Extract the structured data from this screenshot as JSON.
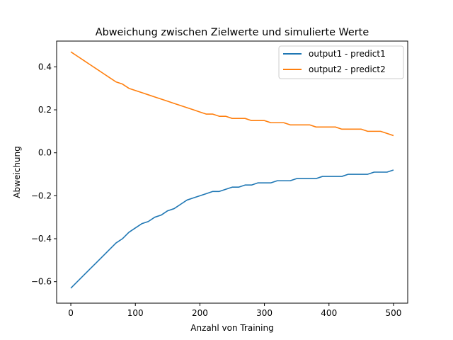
{
  "chart_data": {
    "type": "line",
    "title": "Abweichung zwischen Zielwerte und simulierte Werte",
    "xlabel": "Anzahl von Training",
    "ylabel": "Abweichung",
    "xlim": [
      -22,
      522
    ],
    "ylim": [
      -0.7,
      0.52
    ],
    "xticks": [
      0,
      100,
      200,
      300,
      400,
      500
    ],
    "xtick_labels": [
      "0",
      "100",
      "200",
      "300",
      "400",
      "500"
    ],
    "yticks": [
      -0.6,
      -0.4,
      -0.2,
      0.0,
      0.2,
      0.4
    ],
    "ytick_labels": [
      "−0.6",
      "−0.4",
      "−0.2",
      "0.0",
      "0.2",
      "0.4"
    ],
    "grid": false,
    "legend_position": "top-right",
    "series": [
      {
        "name": "output1 - predict1",
        "color": "#1f77b4",
        "x": [
          0,
          10,
          20,
          30,
          40,
          50,
          60,
          70,
          80,
          90,
          100,
          110,
          120,
          130,
          140,
          150,
          160,
          170,
          180,
          190,
          200,
          210,
          220,
          230,
          240,
          250,
          260,
          270,
          280,
          290,
          300,
          310,
          320,
          330,
          340,
          350,
          360,
          370,
          380,
          390,
          400,
          410,
          420,
          430,
          440,
          450,
          460,
          470,
          480,
          490,
          500
        ],
        "y": [
          -0.63,
          -0.6,
          -0.57,
          -0.54,
          -0.51,
          -0.48,
          -0.45,
          -0.42,
          -0.4,
          -0.37,
          -0.35,
          -0.33,
          -0.32,
          -0.3,
          -0.29,
          -0.27,
          -0.26,
          -0.24,
          -0.22,
          -0.21,
          -0.2,
          -0.19,
          -0.18,
          -0.18,
          -0.17,
          -0.16,
          -0.16,
          -0.15,
          -0.15,
          -0.14,
          -0.14,
          -0.14,
          -0.13,
          -0.13,
          -0.13,
          -0.12,
          -0.12,
          -0.12,
          -0.12,
          -0.11,
          -0.11,
          -0.11,
          -0.11,
          -0.1,
          -0.1,
          -0.1,
          -0.1,
          -0.09,
          -0.09,
          -0.09,
          -0.08
        ]
      },
      {
        "name": "output2 - predict2",
        "color": "#ff7f0e",
        "x": [
          0,
          10,
          20,
          30,
          40,
          50,
          60,
          70,
          80,
          90,
          100,
          110,
          120,
          130,
          140,
          150,
          160,
          170,
          180,
          190,
          200,
          210,
          220,
          230,
          240,
          250,
          260,
          270,
          280,
          290,
          300,
          310,
          320,
          330,
          340,
          350,
          360,
          370,
          380,
          390,
          400,
          410,
          420,
          430,
          440,
          450,
          460,
          470,
          480,
          490,
          500
        ],
        "y": [
          0.47,
          0.45,
          0.43,
          0.41,
          0.39,
          0.37,
          0.35,
          0.33,
          0.32,
          0.3,
          0.29,
          0.28,
          0.27,
          0.26,
          0.25,
          0.24,
          0.23,
          0.22,
          0.21,
          0.2,
          0.19,
          0.18,
          0.18,
          0.17,
          0.17,
          0.16,
          0.16,
          0.16,
          0.15,
          0.15,
          0.15,
          0.14,
          0.14,
          0.14,
          0.13,
          0.13,
          0.13,
          0.13,
          0.12,
          0.12,
          0.12,
          0.12,
          0.11,
          0.11,
          0.11,
          0.11,
          0.1,
          0.1,
          0.1,
          0.09,
          0.08
        ]
      }
    ]
  }
}
